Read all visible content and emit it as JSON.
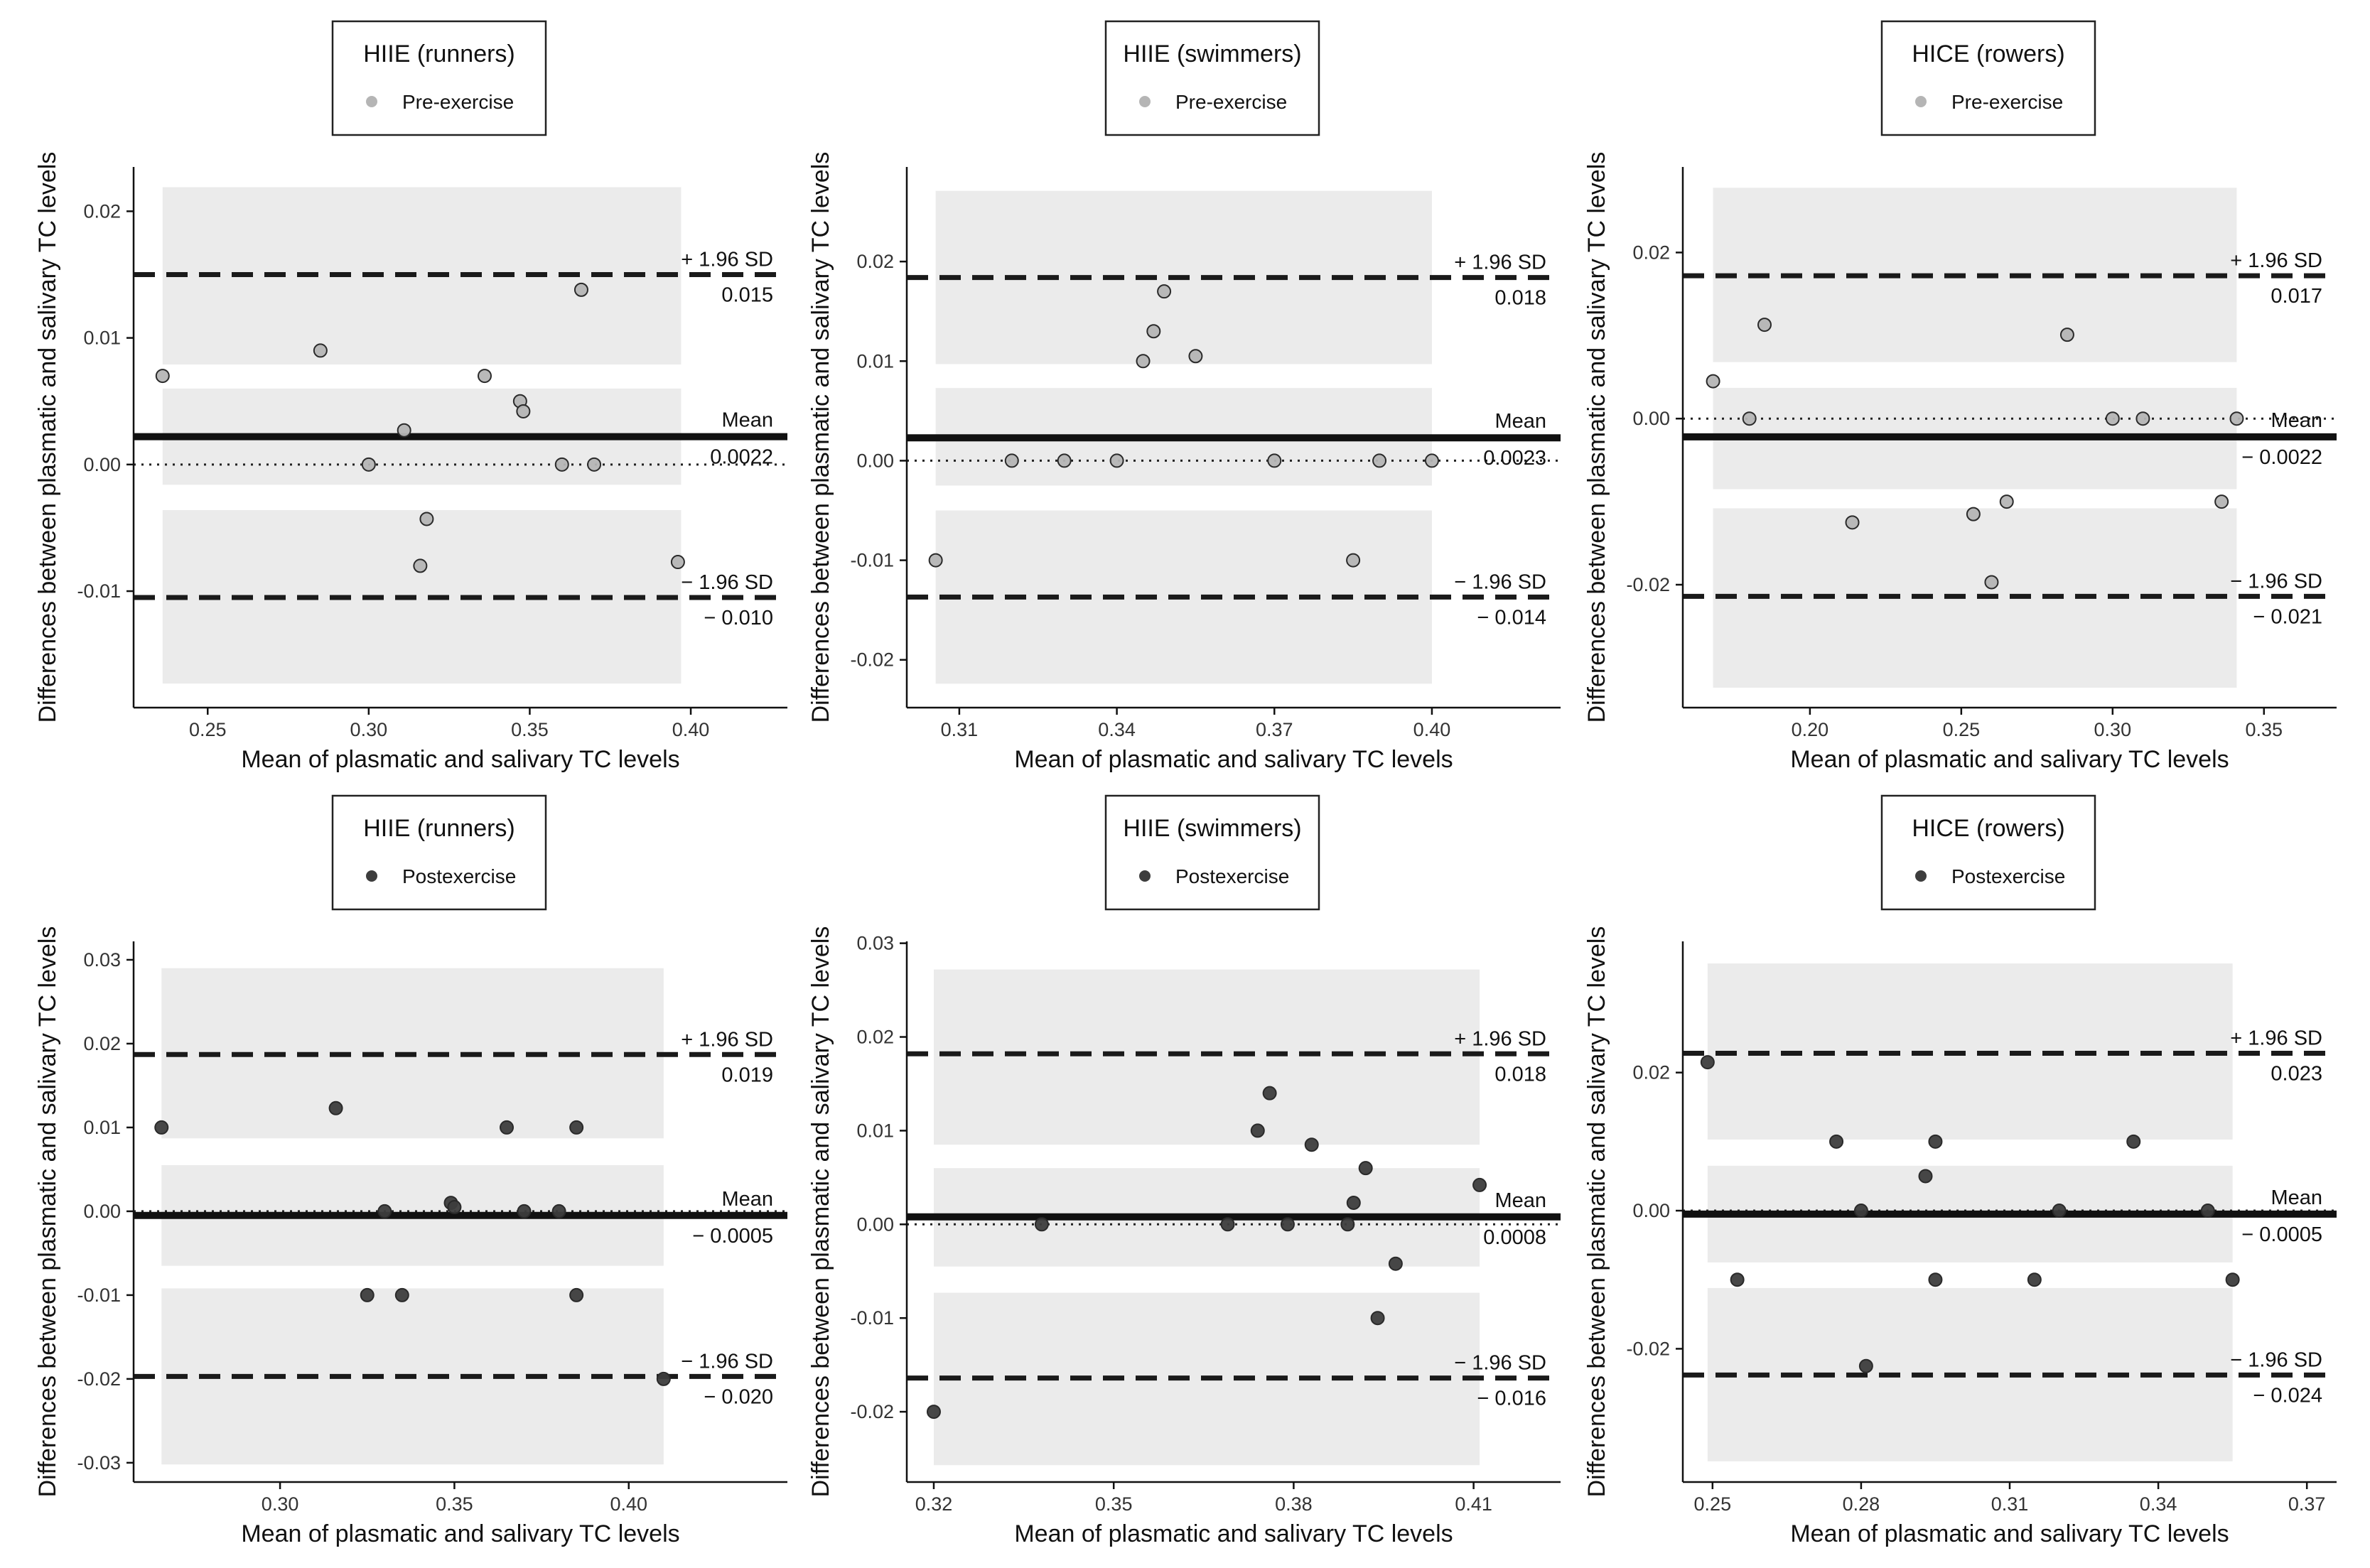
{
  "axis_titles": {
    "x": "Mean of plasmatic and salivary TC levels",
    "y": "Differences between plasmatic and salivary TC levels"
  },
  "labels": {
    "upper_prefix": "+ 1.96 SD",
    "lower_prefix": "− 1.96 SD",
    "mean_prefix": "Mean"
  },
  "colors": {
    "pre_point": "#b5b5b5",
    "post_point": "#3d3d3d",
    "band": "#ebebeb",
    "line": "#1a1a1a"
  },
  "chart_data": [
    {
      "type": "scatter",
      "title": "HIIE (runners)",
      "legend": "Pre-exercise",
      "phase": "pre",
      "xlabel": "Mean of plasmatic and salivary TC levels",
      "ylabel": "Differences between plasmatic and salivary TC levels",
      "xlim": [
        0.227,
        0.43
      ],
      "ylim": [
        -0.0192,
        0.0235
      ],
      "xticks": [
        0.25,
        0.3,
        0.35,
        0.4
      ],
      "xtick_labels": [
        "0.25",
        "0.30",
        "0.35",
        "0.40"
      ],
      "yticks": [
        -0.01,
        0,
        0.01,
        0.02
      ],
      "ytick_labels": [
        "-0.01",
        "0.00",
        "0.01",
        "0.02"
      ],
      "mean": 0.0022,
      "upper": 0.015,
      "lower": -0.0105,
      "mean_label": "0.0022",
      "upper_label": "0.015",
      "lower_label": "− 0.010",
      "bands": [
        [
          0.0079,
          0.0219
        ],
        [
          -0.0016,
          0.006
        ],
        [
          -0.0173,
          -0.0036
        ]
      ],
      "band_x": [
        0.236,
        0.397
      ],
      "points": [
        [
          0.236,
          0.007
        ],
        [
          0.285,
          0.009
        ],
        [
          0.3,
          0.0
        ],
        [
          0.311,
          0.0027
        ],
        [
          0.316,
          -0.008
        ],
        [
          0.318,
          -0.0043
        ],
        [
          0.336,
          0.007
        ],
        [
          0.347,
          0.005
        ],
        [
          0.348,
          0.0042
        ],
        [
          0.36,
          0.0
        ],
        [
          0.366,
          0.0138
        ],
        [
          0.37,
          0.0
        ],
        [
          0.396,
          -0.0077
        ]
      ]
    },
    {
      "type": "scatter",
      "title": "HIIE (swimmers)",
      "legend": "Pre-exercise",
      "phase": "pre",
      "xlabel": "Mean of plasmatic and salivary TC levels",
      "ylabel": "Differences between plasmatic and salivary TC levels",
      "xlim": [
        0.3,
        0.4245
      ],
      "ylim": [
        -0.0248,
        0.0295
      ],
      "xticks": [
        0.31,
        0.34,
        0.37,
        0.4
      ],
      "xtick_labels": [
        "0.31",
        "0.34",
        "0.37",
        "0.40"
      ],
      "yticks": [
        -0.02,
        -0.01,
        0,
        0.01,
        0.02
      ],
      "ytick_labels": [
        "-0.02",
        "-0.01",
        "0.00",
        "0.01",
        "0.02"
      ],
      "mean": 0.0023,
      "upper": 0.0184,
      "lower": -0.0137,
      "mean_label": "0.0023",
      "upper_label": "0.018",
      "lower_label": "− 0.014",
      "bands": [
        [
          0.0097,
          0.0271
        ],
        [
          -0.0025,
          0.0073
        ],
        [
          -0.0224,
          -0.005
        ]
      ],
      "band_x": [
        0.3055,
        0.4
      ],
      "points": [
        [
          0.3055,
          -0.01
        ],
        [
          0.32,
          0.0
        ],
        [
          0.33,
          0.0
        ],
        [
          0.34,
          0.0
        ],
        [
          0.345,
          0.01
        ],
        [
          0.347,
          0.013
        ],
        [
          0.349,
          0.017
        ],
        [
          0.355,
          0.0105
        ],
        [
          0.37,
          0.0
        ],
        [
          0.385,
          -0.01
        ],
        [
          0.39,
          0.0
        ],
        [
          0.4,
          0.0
        ]
      ]
    },
    {
      "type": "scatter",
      "title": "HICE (rowers)",
      "legend": "Pre-exercise",
      "phase": "pre",
      "xlabel": "Mean of plasmatic and salivary TC levels",
      "ylabel": "Differences between plasmatic and salivary TC levels",
      "xlim": [
        0.158,
        0.374
      ],
      "ylim": [
        -0.0348,
        0.0303
      ],
      "xticks": [
        0.2,
        0.25,
        0.3,
        0.35
      ],
      "xtick_labels": [
        "0.20",
        "0.25",
        "0.30",
        "0.35"
      ],
      "yticks": [
        -0.02,
        0,
        0.02
      ],
      "ytick_labels": [
        "-0.02",
        "0.00",
        "0.02"
      ],
      "mean": -0.0022,
      "upper": 0.0172,
      "lower": -0.0214,
      "mean_label": "− 0.0022",
      "upper_label": "0.017",
      "lower_label": "− 0.021",
      "bands": [
        [
          0.0068,
          0.0278
        ],
        [
          -0.0085,
          0.0037
        ],
        [
          -0.0324,
          -0.0108
        ]
      ],
      "band_x": [
        0.168,
        0.341
      ],
      "points": [
        [
          0.168,
          0.0045
        ],
        [
          0.18,
          0.0
        ],
        [
          0.185,
          0.0113
        ],
        [
          0.214,
          -0.0125
        ],
        [
          0.254,
          -0.0115
        ],
        [
          0.26,
          -0.0197
        ],
        [
          0.265,
          -0.01
        ],
        [
          0.285,
          0.0101
        ],
        [
          0.3,
          0.0
        ],
        [
          0.31,
          0.0
        ],
        [
          0.336,
          -0.01
        ],
        [
          0.341,
          0.0
        ]
      ]
    },
    {
      "type": "scatter",
      "title": "HIIE (runners)",
      "legend": "Postexercise",
      "phase": "post",
      "xlabel": "Mean of plasmatic and salivary TC levels",
      "ylabel": "Differences between plasmatic and salivary TC levels",
      "xlim": [
        0.258,
        0.4455
      ],
      "ylim": [
        -0.0323,
        0.0322
      ],
      "xticks": [
        0.3,
        0.35,
        0.4
      ],
      "xtick_labels": [
        "0.30",
        "0.35",
        "0.40"
      ],
      "yticks": [
        -0.03,
        -0.02,
        -0.01,
        0,
        0.01,
        0.02,
        0.03
      ],
      "ytick_labels": [
        "-0.03",
        "-0.02",
        "-0.01",
        "0.00",
        "0.01",
        "0.02",
        "0.03"
      ],
      "mean": -0.0005,
      "upper": 0.0187,
      "lower": -0.0197,
      "mean_label": "− 0.0005",
      "upper_label": "0.019",
      "lower_label": "− 0.020",
      "bands": [
        [
          0.0087,
          0.029
        ],
        [
          -0.0065,
          0.0055
        ],
        [
          -0.0302,
          -0.0092
        ]
      ],
      "band_x": [
        0.266,
        0.41
      ],
      "points": [
        [
          0.266,
          0.01
        ],
        [
          0.316,
          0.0123
        ],
        [
          0.325,
          -0.01
        ],
        [
          0.33,
          0.0
        ],
        [
          0.335,
          -0.01
        ],
        [
          0.349,
          0.001
        ],
        [
          0.35,
          0.0005
        ],
        [
          0.365,
          0.01
        ],
        [
          0.37,
          0.0
        ],
        [
          0.38,
          0.0
        ],
        [
          0.385,
          0.01
        ],
        [
          0.385,
          -0.01
        ],
        [
          0.41,
          -0.02
        ]
      ]
    },
    {
      "type": "scatter",
      "title": "HIIE (swimmers)",
      "legend": "Postexercise",
      "phase": "post",
      "xlabel": "Mean of plasmatic and salivary TC levels",
      "ylabel": "Differences between plasmatic and salivary TC levels",
      "xlim": [
        0.3155,
        0.4245
      ],
      "ylim": [
        -0.0275,
        0.0302
      ],
      "xticks": [
        0.32,
        0.35,
        0.38,
        0.41
      ],
      "xtick_labels": [
        "0.32",
        "0.35",
        "0.38",
        "0.41"
      ],
      "yticks": [
        -0.02,
        -0.01,
        0,
        0.01,
        0.02,
        0.03
      ],
      "ytick_labels": [
        "-0.02",
        "-0.01",
        "0.00",
        "0.01",
        "0.02",
        "0.03"
      ],
      "mean": 0.0008,
      "upper": 0.0182,
      "lower": -0.0164,
      "mean_label": "0.0008",
      "upper_label": "0.018",
      "lower_label": "− 0.016",
      "bands": [
        [
          0.0085,
          0.0272
        ],
        [
          -0.0045,
          0.006
        ],
        [
          -0.0257,
          -0.0073
        ]
      ],
      "band_x": [
        0.32,
        0.411
      ],
      "points": [
        [
          0.32,
          -0.02
        ],
        [
          0.338,
          0.0
        ],
        [
          0.369,
          0.0
        ],
        [
          0.374,
          0.01
        ],
        [
          0.376,
          0.014
        ],
        [
          0.379,
          0.0
        ],
        [
          0.383,
          0.0085
        ],
        [
          0.389,
          0.0
        ],
        [
          0.39,
          0.0023
        ],
        [
          0.392,
          0.006
        ],
        [
          0.394,
          -0.01
        ],
        [
          0.397,
          -0.0042
        ],
        [
          0.411,
          0.0042
        ]
      ]
    },
    {
      "type": "scatter",
      "title": "HICE (rowers)",
      "legend": "Postexercise",
      "phase": "post",
      "xlabel": "Mean of plasmatic and salivary TC levels",
      "ylabel": "Differences between plasmatic and salivary TC levels",
      "xlim": [
        0.244,
        0.376
      ],
      "ylim": [
        -0.0393,
        0.039
      ],
      "xticks": [
        0.25,
        0.28,
        0.31,
        0.34,
        0.37
      ],
      "xtick_labels": [
        "0.25",
        "0.28",
        "0.31",
        "0.34",
        "0.37"
      ],
      "yticks": [
        -0.02,
        0,
        0.02
      ],
      "ytick_labels": [
        "-0.02",
        "0.00",
        "0.02"
      ],
      "mean": -0.0005,
      "upper": 0.0228,
      "lower": -0.0238,
      "mean_label": "− 0.0005",
      "upper_label": "0.023",
      "lower_label": "− 0.024",
      "bands": [
        [
          0.0103,
          0.0358
        ],
        [
          -0.0075,
          0.0065
        ],
        [
          -0.0363,
          -0.0112
        ]
      ],
      "band_x": [
        0.249,
        0.355
      ],
      "points": [
        [
          0.249,
          0.0215
        ],
        [
          0.255,
          -0.01
        ],
        [
          0.275,
          0.01
        ],
        [
          0.28,
          0.0
        ],
        [
          0.281,
          -0.0225
        ],
        [
          0.293,
          0.005
        ],
        [
          0.295,
          0.01
        ],
        [
          0.295,
          -0.01
        ],
        [
          0.315,
          -0.01
        ],
        [
          0.32,
          0.0
        ],
        [
          0.335,
          0.01
        ],
        [
          0.35,
          0.0
        ],
        [
          0.355,
          -0.01
        ]
      ]
    }
  ]
}
